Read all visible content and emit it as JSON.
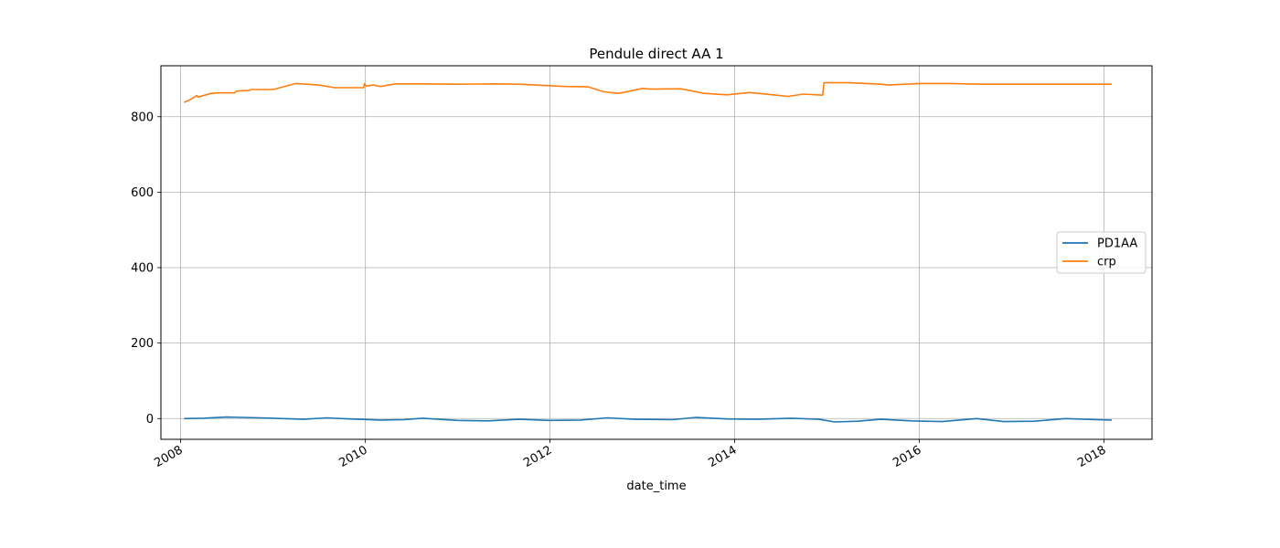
{
  "chart_data": {
    "type": "line",
    "title": "Pendule direct AA 1",
    "xlabel": "date_time",
    "ylabel": "",
    "xlim": [
      "2007-10-15",
      "2018-07-10"
    ],
    "ylim": [
      -55,
      935
    ],
    "x_ticks": [
      "2008",
      "2010",
      "2012",
      "2014",
      "2016",
      "2018"
    ],
    "y_ticks": [
      0,
      200,
      400,
      600,
      800
    ],
    "grid": true,
    "legend_position": "center-right",
    "series": [
      {
        "name": "PD1AA",
        "color": "#1f77b4",
        "x": [
          "2008-01-15",
          "2008-04-01",
          "2008-07-01",
          "2008-09-01",
          "2009-01-01",
          "2009-05-01",
          "2009-08-01",
          "2009-11-01",
          "2010-03-01",
          "2010-06-01",
          "2010-08-15",
          "2011-01-01",
          "2011-05-01",
          "2011-09-01",
          "2012-01-01",
          "2012-05-01",
          "2012-08-15",
          "2012-12-01",
          "2013-05-01",
          "2013-08-01",
          "2013-12-01",
          "2014-04-01",
          "2014-08-15",
          "2014-12-01",
          "2015-02-01",
          "2015-05-01",
          "2015-08-01",
          "2015-12-01",
          "2016-04-01",
          "2016-08-15",
          "2016-12-01",
          "2017-04-01",
          "2017-08-01",
          "2017-12-01",
          "2018-02-01"
        ],
        "values": [
          0,
          1,
          4,
          3,
          1,
          -2,
          2,
          -1,
          -4,
          -3,
          1,
          -5,
          -6,
          -2,
          -5,
          -4,
          2,
          -2,
          -3,
          3,
          -1,
          -2,
          1,
          -2,
          -9,
          -7,
          -2,
          -6,
          -8,
          0,
          -8,
          -7,
          0,
          -3,
          -4
        ]
      },
      {
        "name": "crp",
        "color": "#ff7f0e",
        "x": [
          "2008-01-15",
          "2008-02-10",
          "2008-03-05",
          "2008-03-10",
          "2008-05-01",
          "2008-06-01",
          "2008-08-01",
          "2008-08-10",
          "2008-10-01",
          "2008-10-05",
          "2009-01-01",
          "2009-04-01",
          "2009-07-01",
          "2009-09-01",
          "2009-12-25",
          "2009-12-28",
          "2010-01-05",
          "2010-02-01",
          "2010-03-01",
          "2010-05-01",
          "2010-08-01",
          "2011-01-01",
          "2011-06-01",
          "2011-09-01",
          "2012-03-01",
          "2012-06-01",
          "2012-08-01",
          "2012-10-01",
          "2013-01-01",
          "2013-02-01",
          "2013-06-01",
          "2013-09-01",
          "2013-12-01",
          "2014-03-01",
          "2014-06-01",
          "2014-08-01",
          "2014-10-01",
          "2014-12-15",
          "2014-12-20",
          "2015-04-01",
          "2015-08-01",
          "2015-09-01",
          "2016-01-01",
          "2016-05-01",
          "2016-09-01",
          "2018-02-01"
        ],
        "values": [
          838,
          846,
          856,
          852,
          862,
          863,
          863,
          868,
          870,
          872,
          872,
          888,
          884,
          877,
          877,
          887,
          881,
          884,
          880,
          887,
          887,
          886,
          887,
          886,
          880,
          879,
          866,
          862,
          875,
          873,
          874,
          862,
          858,
          864,
          858,
          854,
          860,
          857,
          890,
          890,
          886,
          884,
          888,
          888,
          886,
          886
        ]
      }
    ]
  }
}
